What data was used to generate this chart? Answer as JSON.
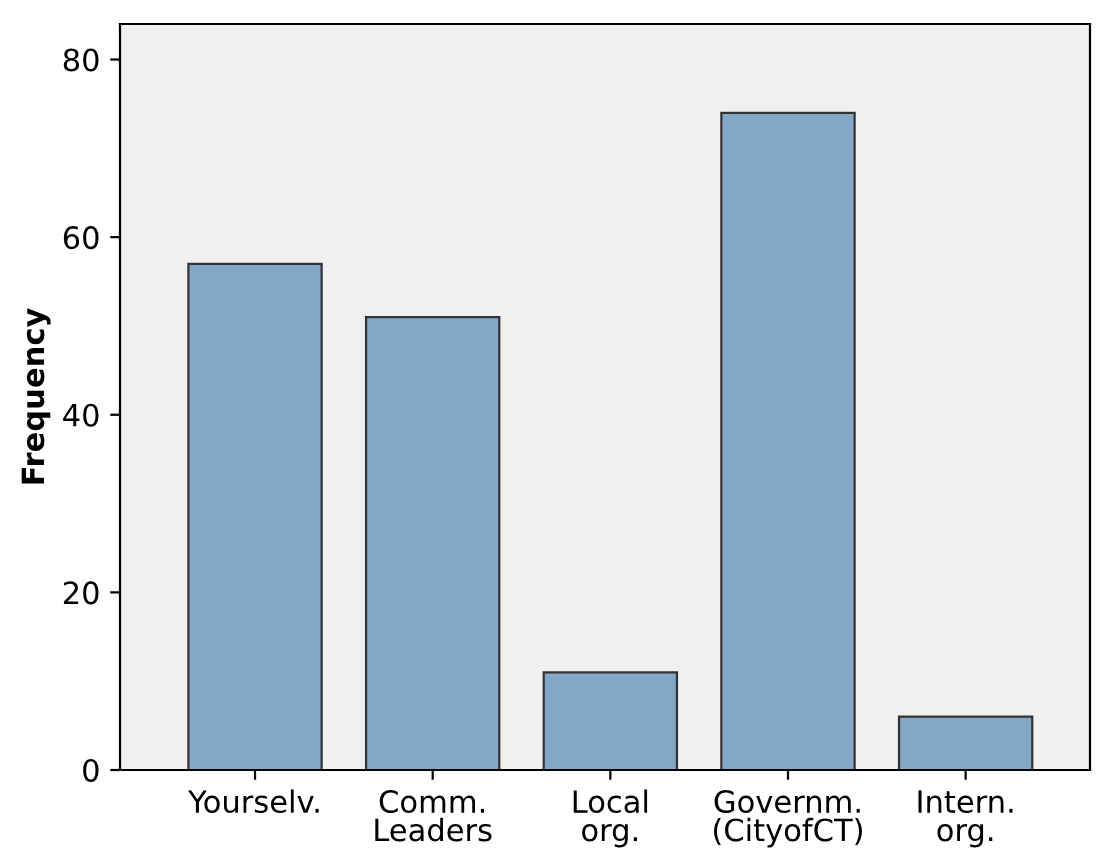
{
  "chart_data": {
    "type": "bar",
    "ylabel": "Frequency",
    "categories": [
      "Yourselv.",
      "Comm.\nLeaders",
      "Local\norg.",
      "Governm.\n(CityofCT)",
      "Intern.\norg."
    ],
    "values": [
      57,
      51,
      11,
      74,
      6
    ],
    "color": "#84a7c8",
    "ylim": [
      0,
      84
    ],
    "yticks": [
      0,
      20,
      40,
      60,
      80
    ],
    "grid": false,
    "legend": false
  }
}
